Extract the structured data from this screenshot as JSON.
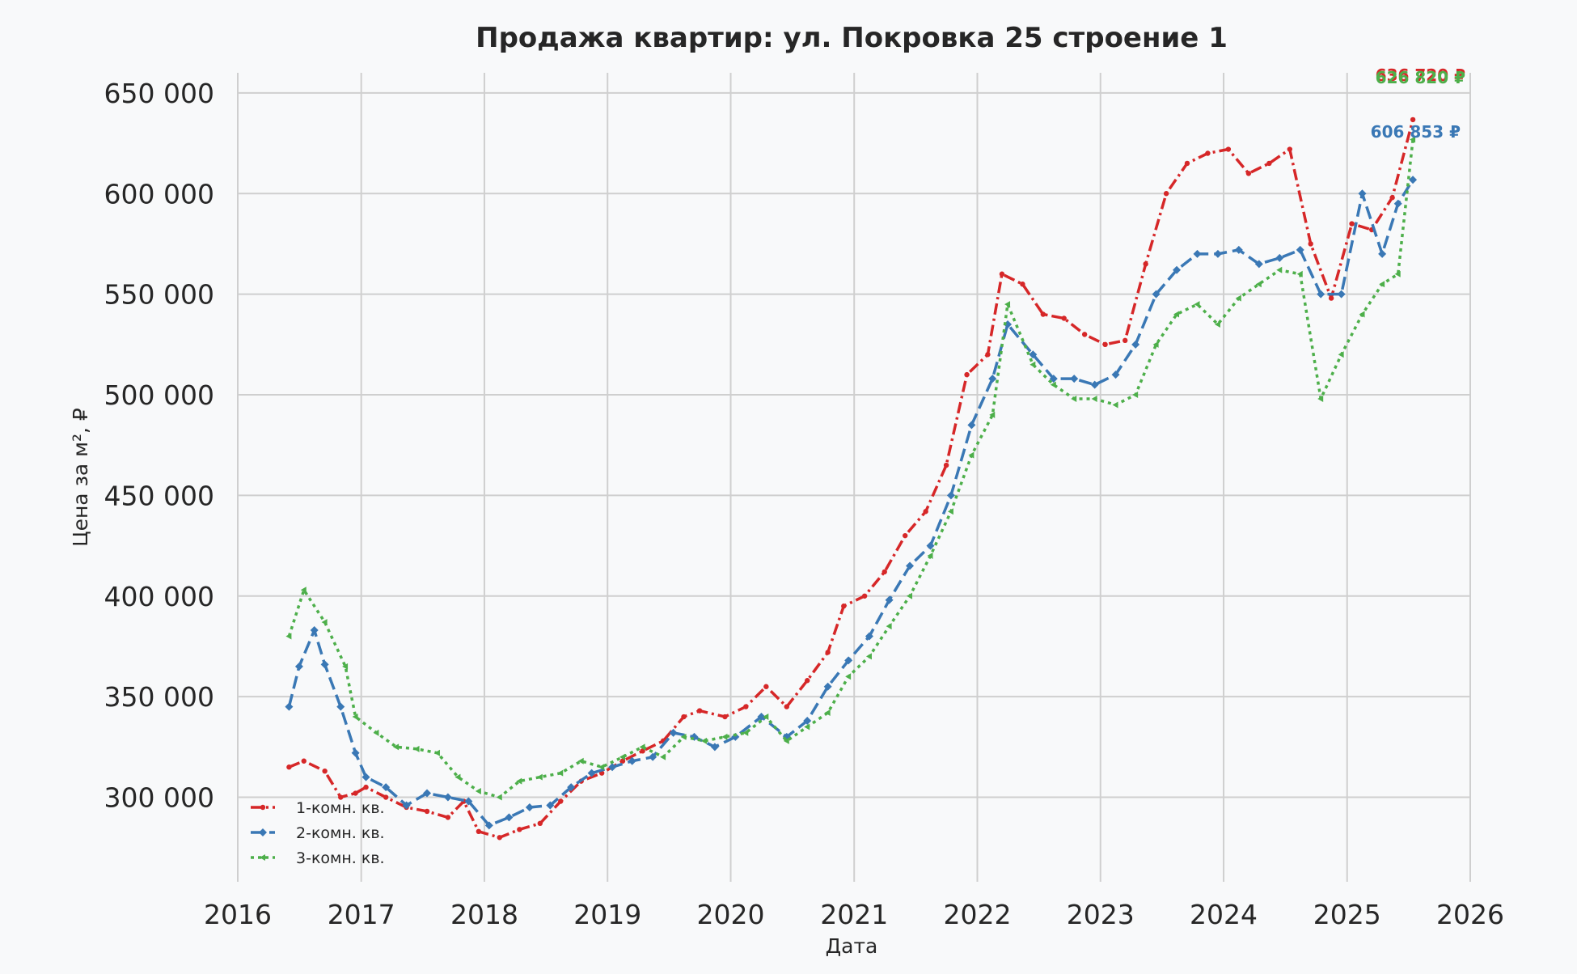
{
  "chart_data": {
    "type": "line",
    "title": "Продажа квартир: ул. Покровка 25 строение 1",
    "xlabel": "Дата",
    "ylabel": "Цена за м², ₽",
    "xlim": [
      "2016-01-01",
      "2026-01-01"
    ],
    "ylim": [
      258000,
      660000
    ],
    "x_ticks": [
      "2016",
      "2017",
      "2018",
      "2019",
      "2020",
      "2021",
      "2022",
      "2023",
      "2024",
      "2025",
      "2026"
    ],
    "y_ticks": [
      "300 000",
      "350 000",
      "400 000",
      "450 000",
      "500 000",
      "550 000",
      "600 000",
      "650 000"
    ],
    "y_tick_values": [
      300000,
      350000,
      400000,
      450000,
      500000,
      550000,
      600000,
      650000
    ],
    "grid": true,
    "legend_position": "bottom-left",
    "series": [
      {
        "name": "1-комн. кв.",
        "color": "#d62728",
        "end_label": "636 720 ₽",
        "points": [
          [
            "2016-06-01",
            315000
          ],
          [
            "2016-07-15",
            318000
          ],
          [
            "2016-09-15",
            313000
          ],
          [
            "2016-11-01",
            300000
          ],
          [
            "2016-12-15",
            302000
          ],
          [
            "2017-01-15",
            305000
          ],
          [
            "2017-03-15",
            300000
          ],
          [
            "2017-05-15",
            295000
          ],
          [
            "2017-07-15",
            293000
          ],
          [
            "2017-09-15",
            290000
          ],
          [
            "2017-11-01",
            298000
          ],
          [
            "2017-12-15",
            283000
          ],
          [
            "2018-02-15",
            280000
          ],
          [
            "2018-04-15",
            284000
          ],
          [
            "2018-06-15",
            287000
          ],
          [
            "2018-08-15",
            298000
          ],
          [
            "2018-10-15",
            308000
          ],
          [
            "2018-12-15",
            312000
          ],
          [
            "2019-02-15",
            318000
          ],
          [
            "2019-04-15",
            323000
          ],
          [
            "2019-06-15",
            328000
          ],
          [
            "2019-08-15",
            340000
          ],
          [
            "2019-10-01",
            343000
          ],
          [
            "2019-12-15",
            340000
          ],
          [
            "2020-02-15",
            345000
          ],
          [
            "2020-04-15",
            355000
          ],
          [
            "2020-06-15",
            345000
          ],
          [
            "2020-08-15",
            358000
          ],
          [
            "2020-10-15",
            372000
          ],
          [
            "2020-12-01",
            395000
          ],
          [
            "2021-02-01",
            400000
          ],
          [
            "2021-04-01",
            412000
          ],
          [
            "2021-06-01",
            430000
          ],
          [
            "2021-08-01",
            442000
          ],
          [
            "2021-10-01",
            465000
          ],
          [
            "2021-12-01",
            510000
          ],
          [
            "2022-02-01",
            520000
          ],
          [
            "2022-03-15",
            560000
          ],
          [
            "2022-05-15",
            555000
          ],
          [
            "2022-07-15",
            540000
          ],
          [
            "2022-09-15",
            538000
          ],
          [
            "2022-11-15",
            530000
          ],
          [
            "2023-01-15",
            525000
          ],
          [
            "2023-03-15",
            527000
          ],
          [
            "2023-05-15",
            565000
          ],
          [
            "2023-07-15",
            600000
          ],
          [
            "2023-09-15",
            615000
          ],
          [
            "2023-11-15",
            620000
          ],
          [
            "2024-01-15",
            622000
          ],
          [
            "2024-03-15",
            610000
          ],
          [
            "2024-05-15",
            615000
          ],
          [
            "2024-07-15",
            622000
          ],
          [
            "2024-09-15",
            575000
          ],
          [
            "2024-11-15",
            548000
          ],
          [
            "2025-01-15",
            585000
          ],
          [
            "2025-03-15",
            582000
          ],
          [
            "2025-05-15",
            598000
          ],
          [
            "2025-07-15",
            636720
          ]
        ]
      },
      {
        "name": "2-комн. кв.",
        "color": "#3a78b5",
        "end_label": "606 853 ₽",
        "points": [
          [
            "2016-06-01",
            345000
          ],
          [
            "2016-07-01",
            365000
          ],
          [
            "2016-08-15",
            383000
          ],
          [
            "2016-09-15",
            366000
          ],
          [
            "2016-11-01",
            345000
          ],
          [
            "2016-12-15",
            322000
          ],
          [
            "2017-01-15",
            310000
          ],
          [
            "2017-03-15",
            305000
          ],
          [
            "2017-05-15",
            296000
          ],
          [
            "2017-07-15",
            302000
          ],
          [
            "2017-09-15",
            300000
          ],
          [
            "2017-11-15",
            298000
          ],
          [
            "2018-01-15",
            286000
          ],
          [
            "2018-03-15",
            290000
          ],
          [
            "2018-05-15",
            295000
          ],
          [
            "2018-07-15",
            296000
          ],
          [
            "2018-09-15",
            305000
          ],
          [
            "2018-11-15",
            312000
          ],
          [
            "2019-01-15",
            315000
          ],
          [
            "2019-03-15",
            318000
          ],
          [
            "2019-05-15",
            320000
          ],
          [
            "2019-07-15",
            332000
          ],
          [
            "2019-09-15",
            330000
          ],
          [
            "2019-11-15",
            325000
          ],
          [
            "2020-01-15",
            330000
          ],
          [
            "2020-04-01",
            340000
          ],
          [
            "2020-06-15",
            330000
          ],
          [
            "2020-08-15",
            338000
          ],
          [
            "2020-10-15",
            355000
          ],
          [
            "2020-12-15",
            368000
          ],
          [
            "2021-02-15",
            380000
          ],
          [
            "2021-04-15",
            398000
          ],
          [
            "2021-06-15",
            415000
          ],
          [
            "2021-08-15",
            425000
          ],
          [
            "2021-10-15",
            450000
          ],
          [
            "2021-12-15",
            485000
          ],
          [
            "2022-02-15",
            508000
          ],
          [
            "2022-04-01",
            535000
          ],
          [
            "2022-06-15",
            520000
          ],
          [
            "2022-08-15",
            508000
          ],
          [
            "2022-10-15",
            508000
          ],
          [
            "2022-12-15",
            505000
          ],
          [
            "2023-02-15",
            510000
          ],
          [
            "2023-04-15",
            525000
          ],
          [
            "2023-06-15",
            550000
          ],
          [
            "2023-08-15",
            562000
          ],
          [
            "2023-10-15",
            570000
          ],
          [
            "2023-12-15",
            570000
          ],
          [
            "2024-02-15",
            572000
          ],
          [
            "2024-04-15",
            565000
          ],
          [
            "2024-06-15",
            568000
          ],
          [
            "2024-08-15",
            572000
          ],
          [
            "2024-10-15",
            550000
          ],
          [
            "2024-12-15",
            550000
          ],
          [
            "2025-02-15",
            600000
          ],
          [
            "2025-04-15",
            570000
          ],
          [
            "2025-06-01",
            595000
          ],
          [
            "2025-07-15",
            606853
          ]
        ]
      },
      {
        "name": "3-комн. кв.",
        "color": "#4daf4a",
        "end_label": "626 820 ₽",
        "points": [
          [
            "2016-06-01",
            380000
          ],
          [
            "2016-07-15",
            403000
          ],
          [
            "2016-09-15",
            387000
          ],
          [
            "2016-11-15",
            365000
          ],
          [
            "2016-12-15",
            340000
          ],
          [
            "2017-02-15",
            332000
          ],
          [
            "2017-04-15",
            325000
          ],
          [
            "2017-06-15",
            324000
          ],
          [
            "2017-08-15",
            322000
          ],
          [
            "2017-10-15",
            310000
          ],
          [
            "2017-12-15",
            303000
          ],
          [
            "2018-02-15",
            300000
          ],
          [
            "2018-04-15",
            308000
          ],
          [
            "2018-06-15",
            310000
          ],
          [
            "2018-08-15",
            312000
          ],
          [
            "2018-10-15",
            318000
          ],
          [
            "2018-12-15",
            315000
          ],
          [
            "2019-02-15",
            320000
          ],
          [
            "2019-04-15",
            325000
          ],
          [
            "2019-06-15",
            320000
          ],
          [
            "2019-08-15",
            330000
          ],
          [
            "2019-10-15",
            328000
          ],
          [
            "2019-12-15",
            330000
          ],
          [
            "2020-02-15",
            332000
          ],
          [
            "2020-04-15",
            340000
          ],
          [
            "2020-06-15",
            328000
          ],
          [
            "2020-08-15",
            335000
          ],
          [
            "2020-10-15",
            342000
          ],
          [
            "2020-12-15",
            360000
          ],
          [
            "2021-02-15",
            370000
          ],
          [
            "2021-04-15",
            385000
          ],
          [
            "2021-06-15",
            400000
          ],
          [
            "2021-08-15",
            420000
          ],
          [
            "2021-10-15",
            442000
          ],
          [
            "2021-12-15",
            470000
          ],
          [
            "2022-02-15",
            490000
          ],
          [
            "2022-04-01",
            545000
          ],
          [
            "2022-06-15",
            515000
          ],
          [
            "2022-08-15",
            505000
          ],
          [
            "2022-10-15",
            498000
          ],
          [
            "2022-12-15",
            498000
          ],
          [
            "2023-02-15",
            495000
          ],
          [
            "2023-04-15",
            500000
          ],
          [
            "2023-06-15",
            525000
          ],
          [
            "2023-08-15",
            540000
          ],
          [
            "2023-10-15",
            545000
          ],
          [
            "2023-12-15",
            535000
          ],
          [
            "2024-02-15",
            548000
          ],
          [
            "2024-04-15",
            555000
          ],
          [
            "2024-06-15",
            562000
          ],
          [
            "2024-08-15",
            560000
          ],
          [
            "2024-10-15",
            498000
          ],
          [
            "2024-12-15",
            520000
          ],
          [
            "2025-02-15",
            540000
          ],
          [
            "2025-04-15",
            555000
          ],
          [
            "2025-06-01",
            560000
          ],
          [
            "2025-07-15",
            626820
          ]
        ]
      }
    ]
  }
}
